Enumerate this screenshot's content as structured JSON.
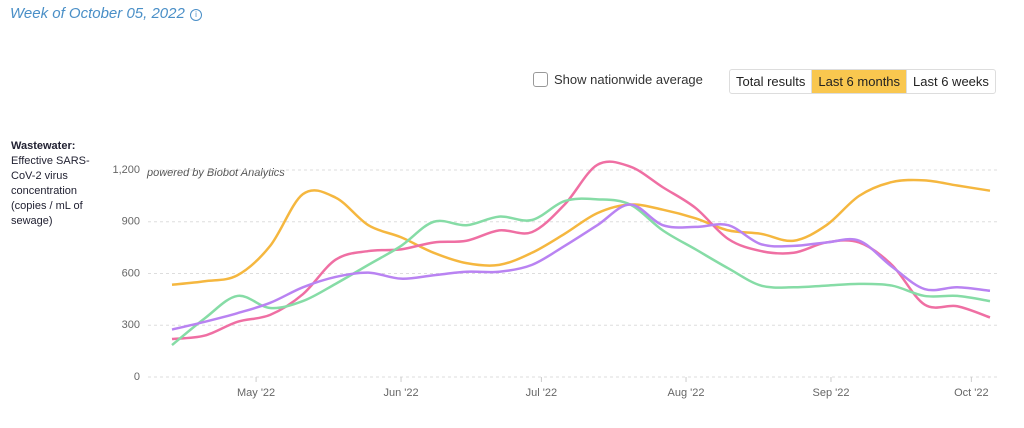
{
  "header": {
    "title": "Week of October 05, 2022"
  },
  "controls": {
    "checkbox": "Show nationwide average",
    "buttons": [
      "Total results",
      "Last 6 months",
      "Last 6 weeks"
    ],
    "active": 1
  },
  "sidebar": {
    "label": "Wastewater:",
    "description": "Effective SARS-CoV-2 virus concentration (copies / mL of sewage)"
  },
  "chart_data": {
    "type": "line",
    "annotation": "powered by Biobot Analytics",
    "x": [
      0,
      1,
      2,
      3,
      4,
      5,
      6,
      7,
      8,
      9,
      10,
      11,
      12,
      13,
      14,
      15,
      16,
      17,
      18,
      19,
      20,
      21,
      22,
      23,
      24,
      25
    ],
    "xlim": [
      0,
      25
    ],
    "xticks": [
      {
        "value": 2.57,
        "label": "May '22"
      },
      {
        "value": 7,
        "label": "Jun '22"
      },
      {
        "value": 11.29,
        "label": "Jul '22"
      },
      {
        "value": 15.71,
        "label": "Aug '22"
      },
      {
        "value": 20.14,
        "label": "Sep '22"
      },
      {
        "value": 24.43,
        "label": "Oct '22"
      }
    ],
    "ylim": [
      0,
      1200
    ],
    "yticks": [
      0,
      300,
      600,
      900,
      {
        "value": 1200,
        "label": "1,200"
      }
    ],
    "grid": true,
    "series": [
      {
        "color": "#f5b73f",
        "values": [
          535,
          555,
          590,
          760,
          1060,
          1040,
          880,
          810,
          720,
          660,
          650,
          720,
          830,
          950,
          1000,
          970,
          920,
          850,
          830,
          790,
          880,
          1050,
          1130,
          1140,
          1110,
          1080
        ]
      },
      {
        "color": "#ef6fa3",
        "values": [
          220,
          240,
          320,
          360,
          480,
          680,
          730,
          740,
          780,
          790,
          850,
          840,
          1000,
          1230,
          1220,
          1100,
          980,
          800,
          730,
          720,
          780,
          780,
          650,
          420,
          410,
          345
        ]
      },
      {
        "color": "#86dca6",
        "values": [
          185,
          340,
          470,
          400,
          440,
          540,
          650,
          760,
          900,
          880,
          930,
          910,
          1020,
          1030,
          1000,
          850,
          740,
          630,
          530,
          520,
          530,
          540,
          530,
          470,
          470,
          440
        ]
      },
      {
        "color": "#b983f2",
        "values": [
          275,
          320,
          370,
          430,
          520,
          580,
          605,
          570,
          590,
          610,
          610,
          650,
          760,
          880,
          1000,
          880,
          870,
          880,
          770,
          760,
          780,
          790,
          640,
          510,
          520,
          500
        ]
      }
    ]
  }
}
